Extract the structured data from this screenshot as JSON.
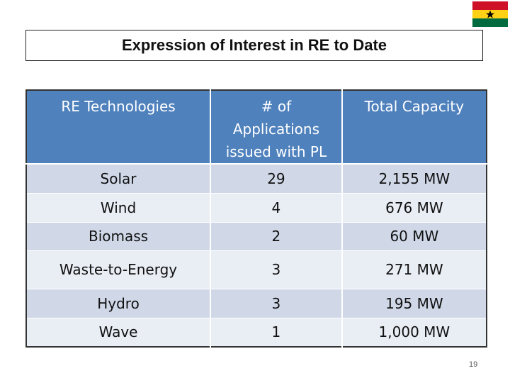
{
  "title": "Expression of Interest in RE to Date",
  "table": {
    "header": [
      "RE Technologies",
      "# of Applications issued with PL",
      "Total Capacity"
    ],
    "rows": [
      [
        "Solar",
        "29",
        "2,155 MW"
      ],
      [
        "Wind",
        "4",
        "676 MW"
      ],
      [
        "Biomass",
        "2",
        "60 MW"
      ],
      [
        "Waste-to-Energy",
        "3",
        "271 MW"
      ],
      [
        "Hydro",
        "3",
        "195 MW"
      ],
      [
        "Wave",
        "1",
        "1,000 MW"
      ]
    ]
  },
  "page_number": "19"
}
